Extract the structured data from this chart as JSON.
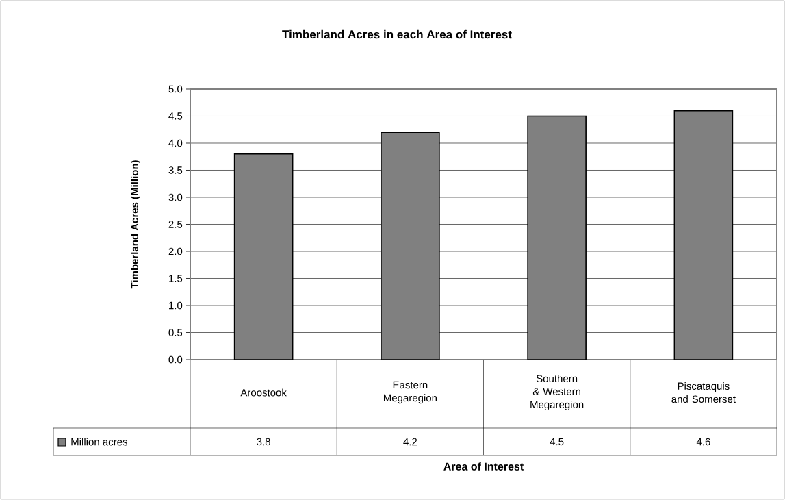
{
  "chart_data": {
    "type": "bar",
    "title": "Timberland Acres in each Area of Interest",
    "xlabel": "Area of Interest",
    "ylabel": "Timberland Acres (Million)",
    "categories": [
      "Aroostook",
      "Eastern Megaregion",
      "Southern & Western Megaregion",
      "Piscataquis and Somerset"
    ],
    "series": [
      {
        "name": "Million acres",
        "color": "#808080",
        "values": [
          3.8,
          4.2,
          4.5,
          4.6
        ]
      }
    ],
    "ylim": [
      0,
      5
    ],
    "yticks": [
      {
        "value": 0,
        "label": "0.0"
      },
      {
        "value": 0.5,
        "label": "0.5"
      },
      {
        "value": 1,
        "label": "1.0"
      },
      {
        "value": 1.5,
        "label": "1.5"
      },
      {
        "value": 2,
        "label": "2.0"
      },
      {
        "value": 2.5,
        "label": "2.5"
      },
      {
        "value": 3,
        "label": "3.0"
      },
      {
        "value": 3.5,
        "label": "3.5"
      },
      {
        "value": 4,
        "label": "4.0"
      },
      {
        "value": 4.5,
        "label": "4.5"
      },
      {
        "value": 5,
        "label": "5.0"
      }
    ],
    "grid": "y",
    "data_labels": true,
    "legend": "bottom left"
  }
}
